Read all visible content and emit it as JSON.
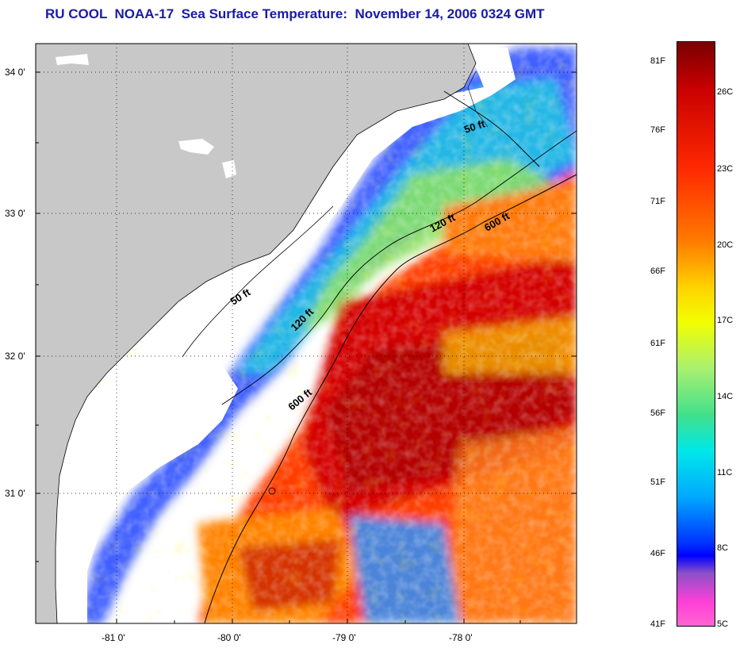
{
  "title": "RU COOL  NOAA-17  Sea Surface Temperature:  November 14, 2006 0324 GMT",
  "map": {
    "lat_labels": [
      "34 0'",
      "33 0'",
      "32 0'",
      "31 0'"
    ],
    "lon_labels": [
      "-81 0'",
      "-80 0'",
      "-79 0'",
      "-78 0'"
    ],
    "contours": [
      {
        "label": "50 ft",
        "id": "50a"
      },
      {
        "label": "50 ft",
        "id": "50b"
      },
      {
        "label": "120 ft",
        "id": "120a"
      },
      {
        "label": "120 ft",
        "id": "120b"
      },
      {
        "label": "600 ft",
        "id": "600a"
      },
      {
        "label": "600 ft",
        "id": "600b"
      }
    ]
  },
  "colorbar": {
    "fahrenheit": [
      "81F",
      "76F",
      "71F",
      "66F",
      "61F",
      "56F",
      "51F",
      "46F",
      "41F"
    ],
    "celsius": [
      "26C",
      "23C",
      "20C",
      "17C",
      "14C",
      "11C",
      "8C",
      "5C"
    ]
  },
  "colors": {
    "land": "#c8c8c8",
    "title": "#1a1aa8",
    "warm": "#e81e00",
    "hot": "#b40000",
    "cool": "#2c50ff"
  }
}
